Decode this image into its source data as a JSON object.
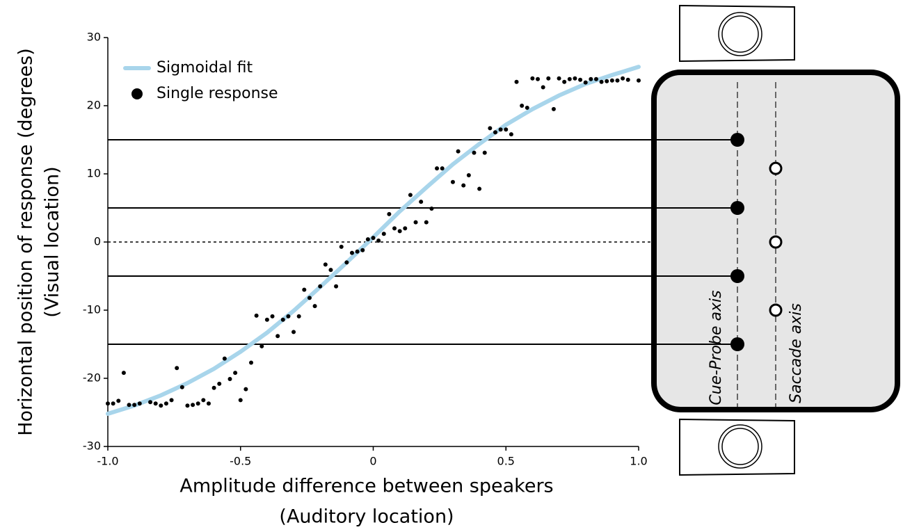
{
  "chart_data": {
    "type": "scatter",
    "y_label": [
      "Horizontal position of response (degrees)",
      "(Visual location)"
    ],
    "x_label": [
      "Amplitude difference between speakers",
      "(Auditory location)"
    ],
    "xlim": [
      -1,
      1
    ],
    "ylim": [
      -30,
      30
    ],
    "xticks": [
      {
        "value": -1,
        "label": "-1.0"
      },
      -0.5,
      0,
      0.5,
      {
        "value": 1,
        "label": "1.0"
      }
    ],
    "yticks": [
      30,
      20,
      10,
      0,
      -10,
      -20,
      -30
    ],
    "series": [
      {
        "name": "Sigmoidal fit",
        "kind": "line",
        "color": "#a8d5eb",
        "x": [
          -1,
          -0.9,
          -0.8,
          -0.7,
          -0.6,
          -0.5,
          -0.4,
          -0.3,
          -0.2,
          -0.1,
          0,
          0.1,
          0.2,
          0.3,
          0.4,
          0.5,
          0.6,
          0.7,
          0.8,
          0.9,
          1
        ],
        "values": [
          -25.2,
          -24.0,
          -22.5,
          -20.7,
          -18.6,
          -16.1,
          -13.3,
          -10.1,
          -6.6,
          -3.0,
          0.7,
          4.5,
          8.0,
          11.4,
          14.4,
          17.2,
          19.5,
          21.5,
          23.2,
          24.5,
          25.7
        ]
      },
      {
        "name": "Single response",
        "kind": "points",
        "color": "#000000",
        "x": [
          -1.0,
          -0.98,
          -0.96,
          -0.94,
          -0.92,
          -0.9,
          -0.88,
          -0.84,
          -0.82,
          -0.8,
          -0.78,
          -0.76,
          -0.74,
          -0.72,
          -0.7,
          -0.68,
          -0.66,
          -0.64,
          -0.62,
          -0.6,
          -0.58,
          -0.56,
          -0.54,
          -0.52,
          -0.5,
          -0.48,
          -0.46,
          -0.44,
          -0.42,
          -0.4,
          -0.38,
          -0.36,
          -0.34,
          -0.32,
          -0.3,
          -0.28,
          -0.26,
          -0.24,
          -0.22,
          -0.2,
          -0.18,
          -0.16,
          -0.14,
          -0.12,
          -0.1,
          -0.08,
          -0.06,
          -0.04,
          -0.02,
          0.0,
          0.02,
          0.04,
          0.06,
          0.08,
          0.1,
          0.12,
          0.14,
          0.16,
          0.18,
          0.2,
          0.22,
          0.24,
          0.26,
          0.3,
          0.32,
          0.34,
          0.36,
          0.38,
          0.4,
          0.42,
          0.44,
          0.46,
          0.48,
          0.5,
          0.52,
          0.54,
          0.56,
          0.58,
          0.6,
          0.62,
          0.64,
          0.66,
          0.68,
          0.7,
          0.72,
          0.74,
          0.76,
          0.78,
          0.8,
          0.82,
          0.84,
          0.86,
          0.88,
          0.9,
          0.92,
          0.94,
          0.96,
          1.0
        ],
        "values": [
          -23.7,
          -23.7,
          -23.3,
          -19.2,
          -23.9,
          -23.9,
          -23.7,
          -23.5,
          -23.7,
          -24.0,
          -23.7,
          -23.2,
          -18.5,
          -21.3,
          -24.0,
          -23.9,
          -23.7,
          -23.2,
          -23.7,
          -21.4,
          -20.8,
          -17.1,
          -20.1,
          -19.2,
          -23.2,
          -21.6,
          -17.7,
          -10.8,
          -15.3,
          -11.4,
          -10.9,
          -13.8,
          -11.4,
          -10.9,
          -13.2,
          -10.9,
          -7.0,
          -8.2,
          -9.4,
          -6.5,
          -3.3,
          -4.1,
          -6.5,
          -0.7,
          -3.0,
          -1.6,
          -1.4,
          -1.2,
          0.4,
          0.6,
          0.2,
          1.2,
          4.1,
          2.0,
          1.6,
          2.0,
          6.9,
          2.9,
          5.9,
          2.9,
          4.9,
          10.8,
          10.8,
          8.8,
          13.3,
          8.3,
          9.8,
          13.1,
          7.8,
          13.1,
          16.7,
          16.1,
          16.5,
          16.5,
          15.8,
          23.5,
          20.0,
          19.7,
          24.0,
          23.9,
          22.7,
          24.0,
          19.5,
          24.0,
          23.5,
          23.9,
          24.0,
          23.8,
          23.4,
          23.9,
          23.9,
          23.5,
          23.6,
          23.7,
          23.7,
          24.0,
          23.8,
          23.7
        ]
      }
    ],
    "reference_lines": [
      15,
      5,
      -5,
      -15
    ],
    "zero_line": 0,
    "panel": {
      "cue_probe_label": "Cue-Probe axis",
      "saccade_label": "Saccade axis",
      "cue_probe_points": [
        15,
        5,
        -5,
        -15
      ],
      "saccade_points": [
        10.8,
        0,
        -10
      ]
    }
  }
}
